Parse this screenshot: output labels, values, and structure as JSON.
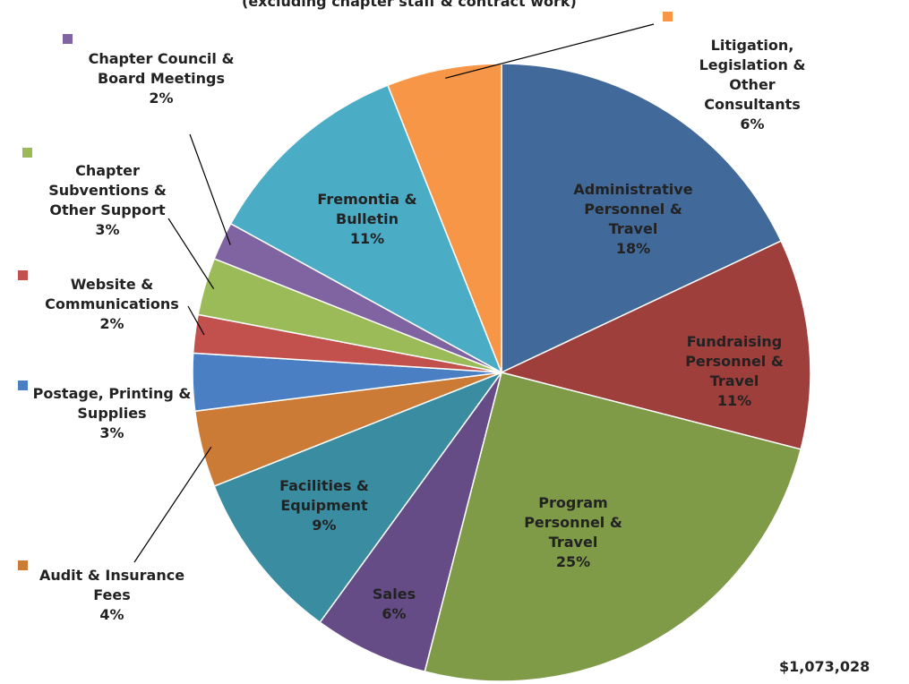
{
  "chart_data": {
    "type": "pie",
    "subtitle": "(excluding chapter staff & contract work)",
    "annotation": "$1,073,028",
    "categories": [
      "Administrative Personnel & Travel",
      "Fundraising Personnel & Travel",
      "Program Personnel & Travel",
      "Sales",
      "Facilities & Equipment",
      "Audit & Insurance Fees",
      "Postage, Printing & Supplies",
      "Website & Communications",
      "Chapter Subventions & Other Support",
      "Chapter Council & Board Meetings",
      "Fremontia & Bulletin",
      "Litigation, Legislation & Other Consultants"
    ],
    "values": [
      18,
      11,
      25,
      6,
      9,
      4,
      3,
      2,
      3,
      2,
      11,
      6
    ],
    "value_labels": [
      "18%",
      "11%",
      "25%",
      "6%",
      "9%",
      "4%",
      "3%",
      "2%",
      "3%",
      "2%",
      "11%",
      "6%"
    ],
    "colors": [
      "#416a9b",
      "#9e3f3c",
      "#7f9b48",
      "#654c86",
      "#3a8ca1",
      "#cb7b36",
      "#4b7fc4",
      "#c2504d",
      "#9bbb59",
      "#8064a2",
      "#4bacc6",
      "#f79646"
    ]
  }
}
